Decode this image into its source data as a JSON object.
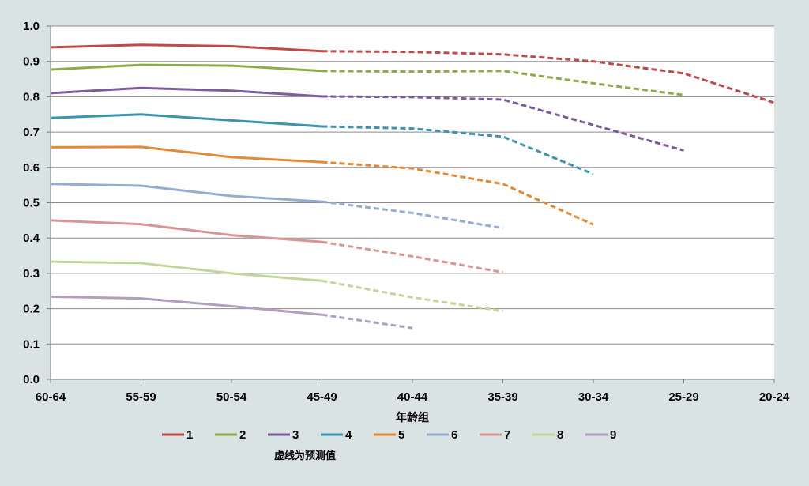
{
  "chart_data": {
    "type": "line",
    "xlabel": "年龄组",
    "ylabel": "",
    "categories": [
      "60-64",
      "55-59",
      "50-54",
      "45-49",
      "40-44",
      "35-39",
      "30-34",
      "25-29",
      "20-24"
    ],
    "yticks": [
      "0.0",
      "0.1",
      "0.2",
      "0.3",
      "0.4",
      "0.5",
      "0.6",
      "0.7",
      "0.8",
      "0.9",
      "1.0"
    ],
    "ylim": [
      0,
      1
    ],
    "grid": true,
    "legend_position": "bottom",
    "note": "虚线为预测值",
    "solid_until_category": "45-49",
    "series": [
      {
        "name": "1",
        "color": "#be4b48",
        "values": [
          0.94,
          0.947,
          0.943,
          0.929,
          0.927,
          0.92,
          0.9,
          0.866,
          0.783
        ]
      },
      {
        "name": "2",
        "color": "#8cab49",
        "values": [
          0.877,
          0.89,
          0.888,
          0.873,
          0.871,
          0.873,
          0.838,
          0.805,
          null
        ]
      },
      {
        "name": "3",
        "color": "#7b5c9e",
        "values": [
          0.81,
          0.825,
          0.817,
          0.801,
          0.799,
          0.792,
          0.72,
          0.648,
          null
        ]
      },
      {
        "name": "4",
        "color": "#3c93ae",
        "values": [
          0.74,
          0.75,
          0.733,
          0.716,
          0.71,
          0.687,
          0.581,
          null,
          null
        ]
      },
      {
        "name": "5",
        "color": "#e48a35",
        "values": [
          0.657,
          0.658,
          0.629,
          0.615,
          0.597,
          0.553,
          0.438,
          null,
          null
        ]
      },
      {
        "name": "6",
        "color": "#95acd2",
        "values": [
          0.553,
          0.548,
          0.519,
          0.503,
          0.471,
          0.428,
          null,
          null,
          null
        ]
      },
      {
        "name": "7",
        "color": "#d99593",
        "values": [
          0.45,
          0.439,
          0.408,
          0.389,
          0.348,
          0.303,
          null,
          null,
          null
        ]
      },
      {
        "name": "8",
        "color": "#c2d69b",
        "values": [
          0.333,
          0.329,
          0.3,
          0.279,
          0.232,
          0.193,
          null,
          null,
          null
        ]
      },
      {
        "name": "9",
        "color": "#b09fc1",
        "values": [
          0.234,
          0.229,
          0.207,
          0.183,
          0.145,
          null,
          null,
          null,
          null
        ]
      }
    ]
  }
}
